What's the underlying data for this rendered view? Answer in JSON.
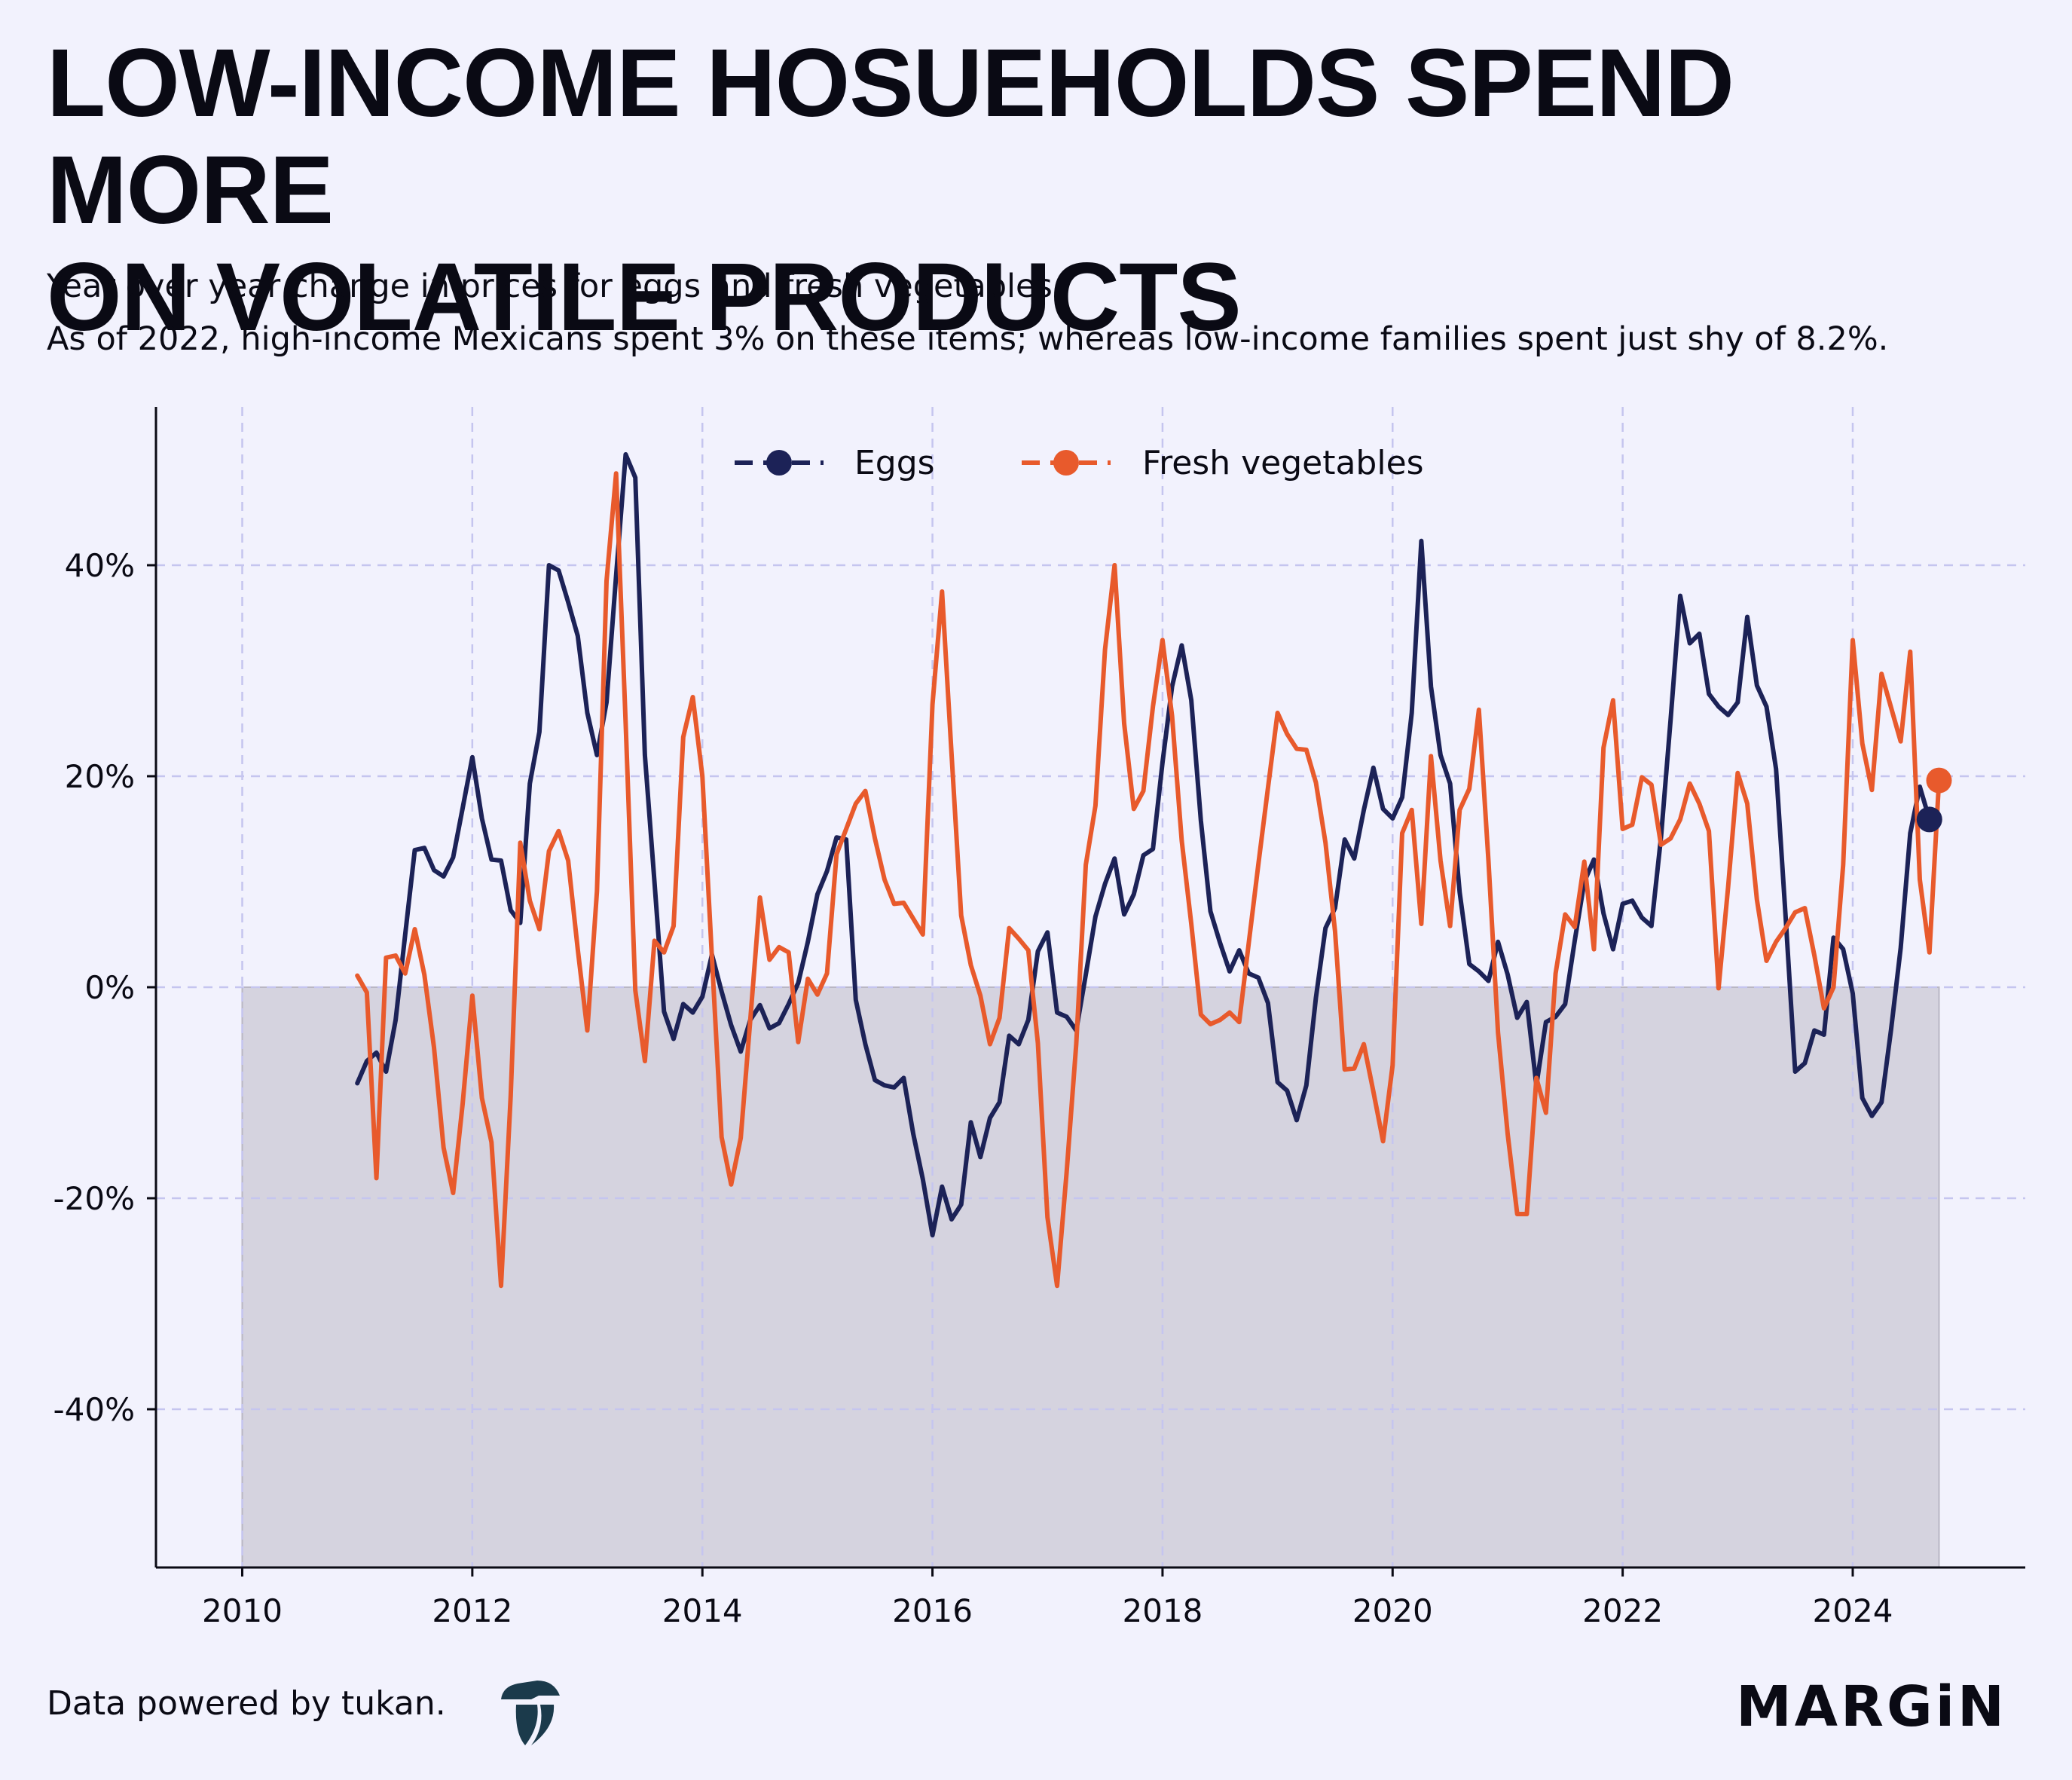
{
  "header": {
    "title_line1": "LOW-INCOME HOSUEHOLDS SPEND MORE",
    "title_line2": "ON VOLATILE PRODUCTS",
    "subtitle_line1": "Year over year change in prices for eggs and fresh vegetables.",
    "subtitle_line2": "As of 2022, high-income Mexicans spent 3% on these items; whereas low-income families spent just shy of 8.2%."
  },
  "footer": {
    "source": "Data powered by tukan.",
    "brand": "MARGiN"
  },
  "colors": {
    "background": "#f2f2fd",
    "eggs": "#1c2257",
    "vegetables": "#e85a2c",
    "grid": "#c5c5ef",
    "shade": "#d5d3df"
  },
  "chart_data": {
    "type": "line",
    "title": "LOW-INCOME HOSUEHOLDS SPEND MORE ON VOLATILE PRODUCTS",
    "xlabel": "",
    "ylabel": "",
    "xlim": [
      2009.25,
      2025.5
    ],
    "ylim": [
      -55,
      55
    ],
    "x_ticks": [
      2010,
      2012,
      2014,
      2016,
      2018,
      2020,
      2022,
      2024
    ],
    "x_tick_labels": [
      "2010",
      "2012",
      "2014",
      "2016",
      "2018",
      "2020",
      "2022",
      "2024"
    ],
    "y_ticks": [
      40,
      20,
      0,
      -20,
      -40
    ],
    "y_tick_labels": [
      "40%",
      "20%",
      "0%",
      "-20%",
      "-40%"
    ],
    "grid": true,
    "legend_position": "top-center",
    "shaded_region": {
      "x_start": 2010,
      "x_end": 2024.75,
      "y_start": -55,
      "y_end": 0
    },
    "x_start": 2011.0,
    "x_step_months": 1,
    "series": [
      {
        "name": "Eggs",
        "end_marker": true,
        "end_value": 15.9,
        "values": [
          -9.1,
          -7.0,
          -6.2,
          -8.0,
          -3.1,
          5.0,
          13.0,
          13.2,
          11.1,
          10.5,
          12.3,
          17.0,
          21.8,
          16.0,
          12.1,
          12.0,
          7.3,
          6.1,
          19.3,
          24.2,
          40.0,
          39.5,
          36.5,
          33.3,
          26.0,
          22.0,
          27.0,
          39.0,
          50.5,
          48.3,
          22.0,
          10.0,
          -2.3,
          -4.9,
          -1.6,
          -2.4,
          -0.9,
          3.1,
          -0.4,
          -3.6,
          -6.1,
          -3.1,
          -1.7,
          -3.9,
          -3.4,
          -1.6,
          0.4,
          4.3,
          8.8,
          11.0,
          14.2,
          14.0,
          -1.2,
          -5.4,
          -8.8,
          -9.3,
          -9.5,
          -8.6,
          -13.9,
          -18.2,
          -23.5,
          -18.9,
          -22.0,
          -20.6,
          -12.8,
          -16.1,
          -12.4,
          -10.9,
          -4.6,
          -5.4,
          -3.1,
          3.4,
          5.2,
          -2.4,
          -2.8,
          -4.1,
          1.2,
          6.7,
          9.8,
          12.2,
          6.9,
          8.8,
          12.5,
          13.1,
          21.3,
          28.5,
          32.4,
          27.2,
          15.8,
          7.2,
          4.2,
          1.5,
          3.5,
          1.3,
          0.9,
          -1.5,
          -9.0,
          -9.8,
          -12.6,
          -9.3,
          -1.0,
          5.6,
          7.5,
          14.0,
          12.2,
          16.8,
          20.8,
          16.9,
          16.0,
          18.0,
          26.0,
          42.3,
          28.5,
          22.0,
          19.3,
          9.0,
          2.2,
          1.5,
          0.6,
          4.3,
          1.2,
          -2.9,
          -1.4,
          -9.3,
          -3.3,
          -2.8,
          -1.6,
          4.4,
          10.0,
          12.1,
          7.0,
          3.6,
          7.9,
          8.2,
          6.6,
          5.8,
          14.2,
          25.3,
          37.1,
          32.6,
          33.5,
          27.8,
          26.6,
          25.8,
          27.0,
          35.1,
          28.6,
          26.6,
          20.7,
          6.7,
          -8.0,
          -7.2,
          -4.1,
          -4.5,
          4.7,
          3.6,
          -0.6,
          -10.5,
          -12.2,
          -10.9,
          -4.0,
          3.7,
          14.6,
          19.0,
          15.9
        ]
      },
      {
        "name": "Fresh vegetables",
        "end_marker": true,
        "end_value": 19.6,
        "values": [
          1.1,
          -0.5,
          -18.1,
          2.8,
          3.0,
          1.3,
          5.5,
          1.2,
          -5.7,
          -15.2,
          -19.5,
          -11.0,
          -0.8,
          -10.5,
          -14.7,
          -28.3,
          -10.3,
          13.7,
          8.2,
          5.5,
          12.9,
          14.8,
          12.0,
          3.6,
          -4.1,
          9.1,
          38.5,
          48.7,
          25.0,
          -0.3,
          -7.0,
          4.4,
          3.3,
          5.8,
          23.7,
          27.5,
          20.0,
          2.8,
          -14.2,
          -18.7,
          -14.3,
          -3.1,
          8.5,
          2.6,
          3.8,
          3.3,
          -5.2,
          0.8,
          -0.7,
          1.3,
          12.6,
          15.0,
          17.4,
          18.6,
          14.1,
          10.2,
          7.9,
          8.0,
          6.5,
          5.0,
          26.8,
          37.5,
          22.0,
          6.8,
          2.1,
          -0.8,
          -5.4,
          -2.9,
          5.6,
          4.6,
          3.5,
          -5.3,
          -21.8,
          -28.3,
          -17.5,
          -5.4,
          11.6,
          17.2,
          32.0,
          40.0,
          25.0,
          16.9,
          18.6,
          26.6,
          32.9,
          25.7,
          13.9,
          6.0,
          -2.6,
          -3.5,
          -3.1,
          -2.4,
          -3.3,
          4.2,
          11.7,
          18.9,
          26.0,
          24.0,
          22.6,
          22.5,
          19.4,
          13.7,
          5.3,
          -7.8,
          -7.7,
          -5.4,
          -9.9,
          -14.6,
          -7.4,
          14.6,
          16.8,
          6.0,
          21.9,
          12.0,
          5.8,
          16.8,
          18.8,
          26.3,
          12.0,
          -4.3,
          -13.9,
          -21.5,
          -21.5,
          -8.6,
          -11.9,
          1.3,
          6.9,
          5.7,
          11.9,
          3.6,
          22.7,
          27.2,
          15.0,
          15.4,
          19.9,
          19.2,
          13.5,
          14.1,
          15.9,
          19.3,
          17.4,
          14.8,
          -0.1,
          9.5,
          20.3,
          17.4,
          8.3,
          2.5,
          4.3,
          5.6,
          7.1,
          7.5,
          3.0,
          -2.0,
          0.0,
          11.6,
          32.9,
          23.1,
          18.7,
          29.7,
          26.5,
          23.3,
          31.8,
          10.2,
          3.3,
          19.6
        ]
      }
    ]
  }
}
